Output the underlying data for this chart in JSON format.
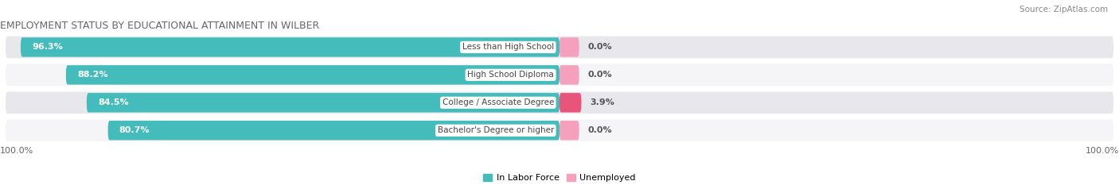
{
  "title": "EMPLOYMENT STATUS BY EDUCATIONAL ATTAINMENT IN WILBER",
  "source": "Source: ZipAtlas.com",
  "categories": [
    "Less than High School",
    "High School Diploma",
    "College / Associate Degree",
    "Bachelor's Degree or higher"
  ],
  "in_labor_force": [
    96.3,
    88.2,
    84.5,
    80.7
  ],
  "unemployed": [
    0.0,
    0.0,
    3.9,
    0.0
  ],
  "unemployed_display": [
    "0.0%",
    "0.0%",
    "3.9%",
    "0.0%"
  ],
  "labor_force_color": "#45BCBC",
  "unemployed_color_high": "#E8547A",
  "unemployed_color_low": "#F5A0BC",
  "bar_bg_colors": [
    "#E8E8EC",
    "#F5F5F8",
    "#E8E8EC",
    "#F5F5F8"
  ],
  "label_color_lf": "#FFFFFF",
  "title_fontsize": 9,
  "label_fontsize": 8,
  "tick_fontsize": 8,
  "source_fontsize": 7.5,
  "total_width": 100,
  "x_left_label": "100.0%",
  "x_right_label": "100.0%",
  "unemployed_threshold": 2.0
}
